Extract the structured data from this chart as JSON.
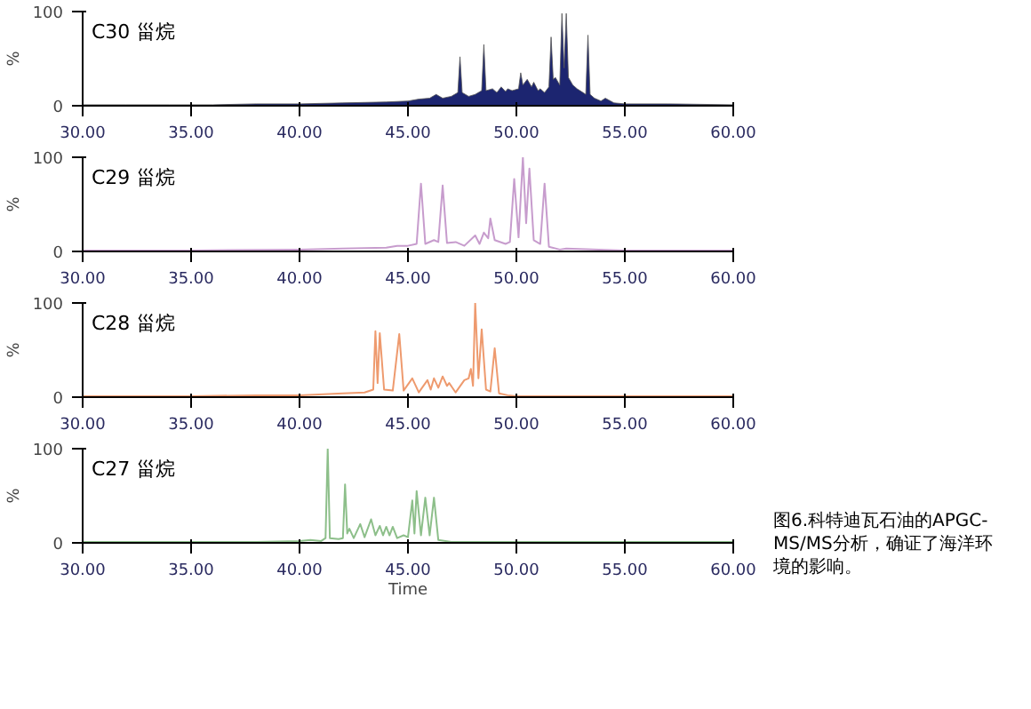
{
  "chart_data": [
    {
      "type": "area",
      "x": [
        30,
        32,
        34,
        36,
        38,
        40,
        42,
        44,
        45,
        45.5,
        46,
        46.3,
        46.6,
        47,
        47.3,
        47.4,
        47.5,
        47.8,
        48.1,
        48.4,
        48.5,
        48.6,
        48.9,
        49.1,
        49.3,
        49.5,
        49.6,
        49.8,
        50.1,
        50.2,
        50.3,
        50.5,
        50.7,
        50.8,
        51,
        51.1,
        51.3,
        51.5,
        51.6,
        51.7,
        51.8,
        52,
        52.1,
        52.2,
        52.3,
        52.4,
        52.6,
        52.8,
        53,
        53.2,
        53.3,
        53.4,
        53.6,
        53.9,
        54.1,
        54.5,
        55,
        57,
        60
      ],
      "series": [
        {
          "name": "C30 甾烷",
          "color": "#1c2570",
          "values": [
            1,
            1,
            1,
            1,
            2,
            2,
            3,
            4,
            5,
            7,
            8,
            12,
            8,
            10,
            14,
            52,
            14,
            10,
            12,
            16,
            65,
            16,
            18,
            14,
            20,
            15,
            18,
            16,
            18,
            35,
            22,
            28,
            20,
            25,
            16,
            18,
            14,
            20,
            73,
            28,
            30,
            22,
            98,
            40,
            98,
            30,
            22,
            18,
            15,
            12,
            75,
            12,
            8,
            5,
            8,
            3,
            2,
            2,
            1
          ]
        }
      ],
      "xlim": [
        30,
        60
      ],
      "xticks": [
        {
          "value": 30,
          "label": "30.00"
        },
        {
          "value": 35,
          "label": "35.00"
        },
        {
          "value": 40,
          "label": "40.00"
        },
        {
          "value": 45,
          "label": "45.00"
        },
        {
          "value": 50,
          "label": "50.00"
        },
        {
          "value": 55,
          "label": "55.00"
        },
        {
          "value": 60,
          "label": "60.00"
        }
      ],
      "ylim": [
        0,
        100
      ],
      "yticks": [
        0,
        100
      ],
      "ylabel": "%",
      "grid": false
    },
    {
      "type": "line",
      "x": [
        30,
        35,
        40,
        42,
        44,
        44.5,
        45,
        45.4,
        45.6,
        45.8,
        46.2,
        46.4,
        46.6,
        46.8,
        47.2,
        47.6,
        48.1,
        48.3,
        48.5,
        48.7,
        48.8,
        49,
        49.5,
        49.7,
        49.9,
        50.1,
        50.3,
        50.45,
        50.6,
        50.8,
        51.1,
        51.3,
        51.5,
        52,
        52.3,
        55,
        60
      ],
      "series": [
        {
          "name": "C29 甾烷",
          "color": "#c79ccd",
          "values": [
            1,
            1,
            2,
            3,
            4,
            6,
            6,
            8,
            72,
            8,
            12,
            10,
            70,
            9,
            10,
            6,
            17,
            8,
            20,
            14,
            35,
            12,
            8,
            10,
            77,
            15,
            100,
            30,
            88,
            12,
            8,
            72,
            5,
            2,
            3,
            1,
            1
          ]
        }
      ],
      "xlim": [
        30,
        60
      ],
      "xticks": [
        {
          "value": 30,
          "label": "30.00"
        },
        {
          "value": 35,
          "label": "35.00"
        },
        {
          "value": 40,
          "label": "40.00"
        },
        {
          "value": 45,
          "label": "45.00"
        },
        {
          "value": 50,
          "label": "50.00"
        },
        {
          "value": 55,
          "label": "55.00"
        },
        {
          "value": 60,
          "label": "60.00"
        }
      ],
      "ylim": [
        0,
        100
      ],
      "yticks": [
        0,
        100
      ],
      "ylabel": "%",
      "grid": false
    },
    {
      "type": "line",
      "x": [
        30,
        35,
        38,
        40,
        42,
        43,
        43.4,
        43.5,
        43.6,
        43.7,
        43.9,
        44.3,
        44.6,
        44.8,
        45.2,
        45.5,
        45.9,
        46.05,
        46.2,
        46.4,
        46.6,
        46.8,
        46.9,
        47.2,
        47.6,
        47.8,
        47.9,
        48,
        48.1,
        48.25,
        48.4,
        48.6,
        48.8,
        49,
        49.2,
        49.6,
        50,
        52,
        60
      ],
      "series": [
        {
          "name": "C28 甾烷",
          "color": "#ee9a6e",
          "values": [
            1,
            1,
            2,
            2,
            4,
            5,
            8,
            70,
            15,
            68,
            8,
            7,
            67,
            7,
            20,
            5,
            18,
            8,
            20,
            10,
            22,
            12,
            15,
            5,
            18,
            20,
            30,
            12,
            100,
            20,
            72,
            8,
            6,
            52,
            4,
            2,
            1,
            1,
            1
          ]
        }
      ],
      "xlim": [
        30,
        60
      ],
      "xticks": [
        {
          "value": 30,
          "label": "30.00"
        },
        {
          "value": 35,
          "label": "35.00"
        },
        {
          "value": 40,
          "label": "40.00"
        },
        {
          "value": 45,
          "label": "45.00"
        },
        {
          "value": 50,
          "label": "50.00"
        },
        {
          "value": 55,
          "label": "55.00"
        },
        {
          "value": 60,
          "label": "60.00"
        }
      ],
      "ylim": [
        0,
        100
      ],
      "yticks": [
        0,
        100
      ],
      "ylabel": "%",
      "grid": false
    },
    {
      "type": "line",
      "x": [
        30,
        35,
        38,
        40,
        40.5,
        41,
        41.2,
        41.3,
        41.4,
        41.8,
        42,
        42.1,
        42.2,
        42.3,
        42.5,
        42.8,
        43,
        43.3,
        43.5,
        43.7,
        43.85,
        44,
        44.15,
        44.3,
        44.5,
        44.8,
        45,
        45.2,
        45.3,
        45.4,
        45.6,
        45.8,
        46,
        46.2,
        46.4,
        47,
        50,
        60
      ],
      "series": [
        {
          "name": "C27 甾烷",
          "color": "#8dbf8a",
          "values": [
            1,
            1,
            1,
            2,
            3,
            2,
            5,
            100,
            5,
            4,
            5,
            62,
            10,
            15,
            5,
            20,
            6,
            25,
            8,
            18,
            8,
            17,
            8,
            17,
            5,
            8,
            6,
            45,
            10,
            55,
            8,
            48,
            8,
            48,
            3,
            1,
            1,
            1
          ]
        }
      ],
      "xlim": [
        30,
        60
      ],
      "xticks": [
        {
          "value": 30,
          "label": "30.00"
        },
        {
          "value": 35,
          "label": "35.00"
        },
        {
          "value": 40,
          "label": "40.00"
        },
        {
          "value": 45,
          "label": "45.00"
        },
        {
          "value": 50,
          "label": "50.00"
        },
        {
          "value": 55,
          "label": "55.00"
        },
        {
          "value": 60,
          "label": "60.00"
        }
      ],
      "ylim": [
        0,
        100
      ],
      "yticks": [
        0,
        100
      ],
      "ylabel": "%",
      "xlabel": "Time",
      "grid": false,
      "annotations": [
        "图6.科特迪瓦石油的APGC-MS/MS分析，确证了海洋环境的影响。"
      ]
    }
  ]
}
